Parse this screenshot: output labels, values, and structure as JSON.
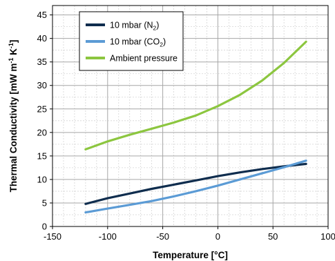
{
  "chart_data": {
    "type": "line",
    "xlabel": "Temperature [°C]",
    "ylabel_parts": [
      "Thermal Conductivity [mW m",
      "-1",
      " K",
      "-1",
      "]"
    ],
    "xlim": [
      -150,
      100
    ],
    "ylim": [
      0,
      47
    ],
    "xticks": [
      -150,
      -100,
      -50,
      0,
      50,
      100
    ],
    "yticks": [
      0,
      5,
      10,
      15,
      20,
      25,
      30,
      35,
      40,
      45
    ],
    "grid": true,
    "legend_position": "top-left",
    "series": [
      {
        "name_parts": [
          "10 mbar (N",
          "2",
          ")"
        ],
        "color": "#0f2d4e",
        "x": [
          -120,
          -100,
          -80,
          -60,
          -40,
          -20,
          0,
          20,
          40,
          60,
          80
        ],
        "y": [
          4.8,
          6.0,
          7.0,
          8.0,
          8.9,
          9.8,
          10.7,
          11.5,
          12.2,
          12.8,
          13.3
        ]
      },
      {
        "name_parts": [
          "10 mbar (CO",
          "2",
          ")"
        ],
        "color": "#5b9bd5",
        "x": [
          -120,
          -100,
          -80,
          -60,
          -40,
          -20,
          0,
          20,
          40,
          60,
          80
        ],
        "y": [
          3.0,
          3.8,
          4.6,
          5.4,
          6.4,
          7.5,
          8.7,
          10.0,
          11.3,
          12.6,
          14.0
        ]
      },
      {
        "name_parts": [
          "Ambient pressure"
        ],
        "color": "#8cc63f",
        "x": [
          -120,
          -100,
          -80,
          -60,
          -40,
          -20,
          0,
          20,
          40,
          60,
          80
        ],
        "y": [
          16.4,
          18.1,
          19.5,
          20.8,
          22.1,
          23.6,
          25.6,
          28.0,
          31.0,
          34.8,
          39.3
        ]
      }
    ]
  }
}
